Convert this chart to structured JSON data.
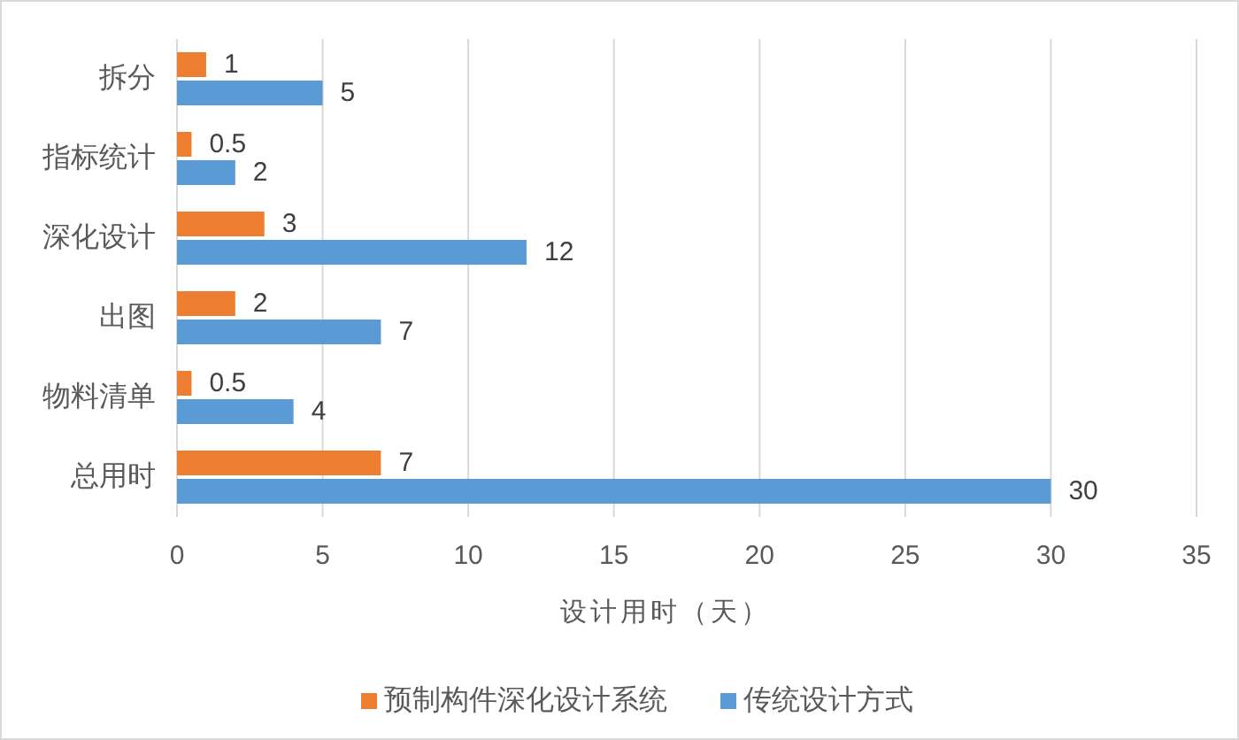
{
  "chart_data": {
    "type": "bar",
    "orientation": "horizontal",
    "categories": [
      "拆分",
      "指标统计",
      "深化设计",
      "出图",
      "物料清单",
      "总用时"
    ],
    "series": [
      {
        "name": "预制构件深化设计系统",
        "color": "#ed7d31",
        "values": [
          1,
          0.5,
          3,
          2,
          0.5,
          7
        ]
      },
      {
        "name": "传统设计方式",
        "color": "#5b9bd5",
        "values": [
          5,
          2,
          12,
          7,
          4,
          30
        ]
      }
    ],
    "xlim": [
      0,
      35
    ],
    "xticks": [
      0,
      5,
      10,
      15,
      20,
      25,
      30,
      35
    ],
    "xlabel": "设计用时（天）",
    "grid": "x",
    "legend": "bottom",
    "data_labels": true
  }
}
